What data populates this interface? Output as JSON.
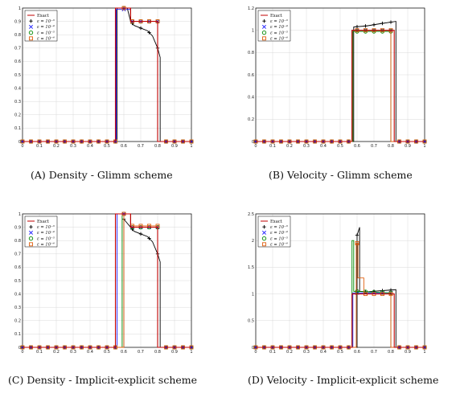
{
  "colors": {
    "exact": "#c00000",
    "eps1": "#000000",
    "eps2": "#1a1aff",
    "eps3": "#008800",
    "eps4": "#e06010",
    "grid": "#d9d9d9"
  },
  "chart_data": [
    {
      "id": "a",
      "type": "line",
      "caption_prefix": "(A)",
      "caption_text": "Density - Glimm scheme",
      "xlim": [
        0,
        1
      ],
      "ylim": [
        0,
        1
      ],
      "xticks": [
        "0",
        "0.1",
        "0.2",
        "0.3",
        "0.4",
        "0.5",
        "0.6",
        "0.7",
        "0.8",
        "0.9",
        "1"
      ],
      "yticks": [
        "0",
        "0.1",
        "0.2",
        "0.3",
        "0.4",
        "0.5",
        "0.6",
        "0.7",
        "0.8",
        "0.9",
        "1"
      ],
      "legend": [
        "Exact",
        "ε = 10⁻³",
        "ε = 10⁻⁴",
        "ε = 10⁻⁵",
        "ε = 10⁻⁶"
      ],
      "series": [
        {
          "name": "Exact",
          "style": "exact",
          "x": [
            0,
            0.55,
            0.55,
            0.64,
            0.64,
            0.8,
            0.8,
            1
          ],
          "y": [
            0,
            0,
            1,
            1,
            0.9,
            0.9,
            0,
            0
          ]
        },
        {
          "name": "ε = 10⁻³",
          "style": "eps1",
          "x": [
            0,
            0.56,
            0.56,
            0.62,
            0.64,
            0.66,
            0.7,
            0.74,
            0.77,
            0.8,
            0.815,
            0.815,
            1
          ],
          "y": [
            0,
            0,
            1,
            1,
            0.9,
            0.87,
            0.85,
            0.83,
            0.79,
            0.7,
            0.63,
            0,
            0
          ]
        },
        {
          "name": "ε = 10⁻⁴",
          "style": "eps2",
          "x": [
            0,
            0.555,
            0.555,
            0.64,
            0.64,
            0.8,
            0.8,
            1
          ],
          "y": [
            0,
            0,
            0.99,
            0.99,
            0.9,
            0.9,
            0,
            0
          ]
        },
        {
          "name": "ε = 10⁻⁵",
          "style": "eps3",
          "x": [
            0,
            0.55,
            0.55,
            0.64,
            0.64,
            0.8,
            0.8,
            1
          ],
          "y": [
            0,
            0,
            1,
            1,
            0.9,
            0.9,
            0,
            0
          ]
        },
        {
          "name": "ε = 10⁻⁶",
          "style": "eps4",
          "x": [
            0,
            0.55,
            0.55,
            0.64,
            0.64,
            0.8,
            0.8,
            1
          ],
          "y": [
            0,
            0,
            1,
            1,
            0.9,
            0.9,
            0,
            0
          ]
        }
      ]
    },
    {
      "id": "b",
      "type": "line",
      "caption_prefix": "(B)",
      "caption_text": "Velocity - Glimm scheme",
      "xlim": [
        0,
        1
      ],
      "ylim": [
        0,
        1.2
      ],
      "xticks": [
        "0",
        "0.1",
        "0.2",
        "0.3",
        "0.4",
        "0.5",
        "0.6",
        "0.7",
        "0.8",
        "0.9",
        "1"
      ],
      "yticks": [
        "0",
        "0.2",
        "0.4",
        "0.6",
        "0.8",
        "1",
        "1.2"
      ],
      "legend": [
        "Exact",
        "ε = 10⁻³",
        "ε = 10⁻⁴",
        "ε = 10⁻⁵",
        "ε = 10⁻⁶"
      ],
      "series": [
        {
          "name": "Exact",
          "style": "exact",
          "x": [
            0,
            0.57,
            0.57,
            0.82,
            0.82,
            1
          ],
          "y": [
            0,
            0,
            1,
            1,
            0,
            0
          ]
        },
        {
          "name": "ε = 10⁻³",
          "style": "eps1",
          "x": [
            0,
            0.58,
            0.58,
            0.66,
            0.74,
            0.83,
            0.83,
            1
          ],
          "y": [
            0,
            0,
            1.03,
            1.04,
            1.06,
            1.08,
            0,
            0
          ]
        },
        {
          "name": "ε = 10⁻⁴",
          "style": "eps2",
          "x": [
            0,
            0.57,
            0.57,
            0.8,
            0.8,
            1
          ],
          "y": [
            0,
            0,
            1,
            1,
            0,
            0
          ]
        },
        {
          "name": "ε = 10⁻⁵",
          "style": "eps3",
          "x": [
            0,
            0.575,
            0.575,
            0.8,
            0.8,
            1
          ],
          "y": [
            0,
            0,
            0.99,
            0.99,
            0,
            0
          ]
        },
        {
          "name": "ε = 10⁻⁶",
          "style": "eps4",
          "x": [
            0,
            0.57,
            0.57,
            0.8,
            0.8,
            1
          ],
          "y": [
            0,
            0,
            1,
            1,
            0,
            0
          ]
        }
      ]
    },
    {
      "id": "c",
      "type": "line",
      "caption_prefix": "(C)",
      "caption_text": "Density - Implicit-explicit scheme",
      "xlim": [
        0,
        1
      ],
      "ylim": [
        0,
        1
      ],
      "xticks": [
        "0",
        "0.1",
        "0.2",
        "0.3",
        "0.4",
        "0.5",
        "0.6",
        "0.7",
        "0.8",
        "0.9",
        "1"
      ],
      "yticks": [
        "0",
        "0.1",
        "0.2",
        "0.3",
        "0.4",
        "0.5",
        "0.6",
        "0.7",
        "0.8",
        "0.9",
        "1"
      ],
      "legend": [
        "Exact",
        "ε = 10⁻³",
        "ε = 10⁻⁴",
        "ε = 10⁻⁵",
        "ε = 10⁻⁶"
      ],
      "series": [
        {
          "name": "Exact",
          "style": "exact",
          "x": [
            0,
            0.55,
            0.55,
            0.64,
            0.64,
            0.8,
            0.8,
            1
          ],
          "y": [
            0,
            0,
            1,
            1,
            0.9,
            0.9,
            0,
            0
          ]
        },
        {
          "name": "ε = 10⁻³",
          "style": "eps1",
          "x": [
            0,
            0.6,
            0.6,
            0.62,
            0.64,
            0.66,
            0.7,
            0.74,
            0.77,
            0.8,
            0.815,
            0.815,
            1
          ],
          "y": [
            0,
            0,
            0.96,
            0.93,
            0.9,
            0.87,
            0.85,
            0.83,
            0.79,
            0.7,
            0.64,
            0,
            0
          ]
        },
        {
          "name": "ε = 10⁻⁴",
          "style": "eps2",
          "x": [
            0,
            0.56,
            0.56,
            0.64,
            0.64,
            0.8,
            0.8,
            1
          ],
          "y": [
            0,
            0,
            1,
            1,
            0.9,
            0.9,
            0,
            0
          ]
        },
        {
          "name": "ε = 10⁻⁵",
          "style": "eps3",
          "x": [
            0,
            0.59,
            0.59,
            0.64,
            0.64,
            0.8,
            0.8,
            1
          ],
          "y": [
            0,
            0,
            1,
            1,
            0.9,
            0.9,
            0,
            0
          ]
        },
        {
          "name": "ε = 10⁻⁶",
          "style": "eps4",
          "x": [
            0,
            0.6,
            0.6,
            0.64,
            0.64,
            0.8,
            0.8,
            1
          ],
          "y": [
            0,
            0,
            1,
            1,
            0.91,
            0.91,
            0,
            0
          ]
        }
      ]
    },
    {
      "id": "d",
      "type": "line",
      "caption_prefix": "(D)",
      "caption_text": "Velocity - Implicit-explicit scheme",
      "xlim": [
        0,
        1
      ],
      "ylim": [
        0,
        2.5
      ],
      "xticks": [
        "0",
        "0.1",
        "0.2",
        "0.3",
        "0.4",
        "0.5",
        "0.6",
        "0.7",
        "0.8",
        "0.9",
        "1"
      ],
      "yticks": [
        "0",
        "0.5",
        "1",
        "1.5",
        "2",
        "2.5"
      ],
      "legend": [
        "Exact",
        "ε = 10⁻³",
        "ε = 10⁻⁴",
        "ε = 10⁻⁵",
        "ε = 10⁻⁶"
      ],
      "series": [
        {
          "name": "Exact",
          "style": "exact",
          "x": [
            0,
            0.57,
            0.57,
            0.82,
            0.82,
            1
          ],
          "y": [
            0,
            0,
            1,
            1,
            0,
            0
          ]
        },
        {
          "name": "ε = 10⁻³",
          "style": "eps1",
          "x": [
            0,
            0.6,
            0.6,
            0.615,
            0.615,
            0.66,
            0.74,
            0.83,
            0.83,
            1
          ],
          "y": [
            0,
            0,
            2.1,
            2.25,
            1.05,
            1.04,
            1.06,
            1.08,
            0,
            0
          ]
        },
        {
          "name": "ε = 10⁻⁴",
          "style": "eps2",
          "x": [
            0,
            0.575,
            0.575,
            0.8,
            0.8,
            1
          ],
          "y": [
            0,
            0,
            1.02,
            1.02,
            0,
            0
          ]
        },
        {
          "name": "ε = 10⁻⁵",
          "style": "eps3",
          "x": [
            0,
            0.57,
            0.57,
            0.58,
            0.58,
            0.8,
            0.8,
            1
          ],
          "y": [
            0,
            0,
            2.0,
            2.0,
            1.05,
            1.02,
            0,
            0
          ]
        },
        {
          "name": "ε = 10⁻⁶",
          "style": "eps4",
          "x": [
            0,
            0.595,
            0.595,
            0.605,
            0.605,
            0.64,
            0.64,
            0.8,
            0.8,
            1
          ],
          "y": [
            0,
            0,
            1.95,
            1.95,
            1.3,
            1.3,
            1.0,
            1.0,
            0,
            0
          ]
        }
      ]
    }
  ]
}
